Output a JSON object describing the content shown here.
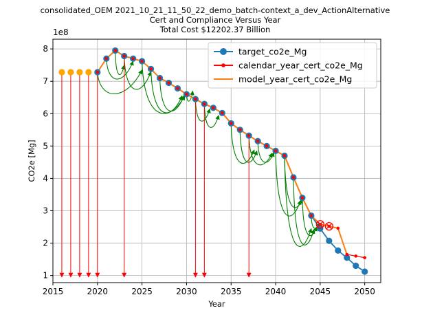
{
  "chart_data": {
    "type": "line",
    "title_lines": [
      "consolidated_OEM 2021_10_21_11_50_22_demo_batch-context_a_dev_ActionAlternative",
      "Cert and Compliance Versus Year",
      "Total Cost $12202.37 Billion"
    ],
    "xlabel": "Year",
    "ylabel": "CO2e [Mg]",
    "y_multiplier_label": "1e8",
    "xlim": [
      2015,
      2051.8
    ],
    "ylim": [
      0.78,
      8.3
    ],
    "x_ticks": [
      2015,
      2020,
      2025,
      2030,
      2035,
      2040,
      2045,
      2050
    ],
    "y_ticks": [
      1,
      2,
      3,
      4,
      5,
      6,
      7,
      8
    ],
    "grid": true,
    "legend_position": "upper right",
    "legend": [
      "target_co2e_Mg",
      "calendar_year_cert_co2e_Mg",
      "model_year_cert_co2e_Mg"
    ],
    "colors": {
      "target": "#1f77b4",
      "calendar": "#ff0000",
      "model": "#ff7f0e",
      "transfer": "#008000",
      "pre_credit": "#ffa500"
    },
    "series": [
      {
        "name": "target_co2e_Mg",
        "x": [
          2020,
          2021,
          2022,
          2023,
          2024,
          2025,
          2026,
          2027,
          2028,
          2029,
          2030,
          2031,
          2032,
          2033,
          2034,
          2035,
          2036,
          2037,
          2038,
          2039,
          2040,
          2041,
          2042,
          2043,
          2044,
          2045,
          2046,
          2047,
          2048,
          2049,
          2050
        ],
        "y": [
          7.28,
          7.7,
          7.95,
          7.78,
          7.7,
          7.62,
          7.38,
          7.1,
          6.95,
          6.78,
          6.6,
          6.45,
          6.3,
          6.18,
          6.02,
          5.7,
          5.5,
          5.32,
          5.15,
          5.0,
          4.85,
          4.7,
          4.03,
          3.4,
          2.85,
          2.45,
          2.07,
          1.77,
          1.55,
          1.3,
          1.12
        ]
      },
      {
        "name": "calendar_year_cert_co2e_Mg",
        "x": [
          2020,
          2021,
          2022,
          2023,
          2024,
          2025,
          2026,
          2027,
          2028,
          2029,
          2030,
          2031,
          2032,
          2033,
          2034,
          2035,
          2036,
          2037,
          2038,
          2039,
          2040,
          2041,
          2042,
          2043,
          2044,
          2045,
          2046,
          2047,
          2048,
          2049,
          2050
        ],
        "y": [
          7.28,
          7.7,
          7.95,
          7.78,
          7.7,
          7.62,
          7.38,
          7.1,
          6.95,
          6.78,
          6.6,
          6.45,
          6.3,
          6.18,
          6.02,
          5.7,
          5.5,
          5.32,
          5.15,
          5.0,
          4.85,
          4.7,
          4.03,
          3.4,
          2.85,
          2.58,
          2.52,
          2.46,
          1.65,
          1.6,
          1.55
        ]
      },
      {
        "name": "model_year_cert_co2e_Mg",
        "x": [
          2020,
          2021,
          2022,
          2023,
          2024,
          2025,
          2026,
          2027,
          2028,
          2029,
          2030,
          2031,
          2032,
          2033,
          2034,
          2035,
          2036,
          2037,
          2038,
          2039,
          2040,
          2041,
          2042,
          2043,
          2044,
          2045,
          2046,
          2047,
          2048
        ],
        "y": [
          7.28,
          7.7,
          7.95,
          7.78,
          7.7,
          7.62,
          7.38,
          7.1,
          6.95,
          6.78,
          6.6,
          6.45,
          6.3,
          6.18,
          6.02,
          5.7,
          5.5,
          5.32,
          5.15,
          5.0,
          4.85,
          4.7,
          4.03,
          3.4,
          2.85,
          2.58,
          2.52,
          2.46,
          1.65
        ]
      }
    ],
    "pre_credit_points": {
      "x": [
        2016,
        2017,
        2018,
        2019
      ],
      "y": [
        7.28,
        7.28,
        7.28,
        7.28
      ]
    },
    "expired_credit_markers": [
      {
        "x": 2045,
        "y": 2.58
      },
      {
        "x": 2046,
        "y": 2.52
      }
    ],
    "credit_expiration_arrows": [
      {
        "x": 2016,
        "y_from": 7.22,
        "y_to": 0.95
      },
      {
        "x": 2017,
        "y_from": 7.22,
        "y_to": 0.95
      },
      {
        "x": 2018,
        "y_from": 7.22,
        "y_to": 0.95
      },
      {
        "x": 2019,
        "y_from": 7.22,
        "y_to": 0.95
      },
      {
        "x": 2020,
        "y_from": 7.22,
        "y_to": 0.95
      },
      {
        "x": 2023,
        "y_from": 7.72,
        "y_to": 0.95
      },
      {
        "x": 2031,
        "y_from": 6.4,
        "y_to": 0.95
      },
      {
        "x": 2032,
        "y_from": 6.25,
        "y_to": 0.95
      },
      {
        "x": 2037,
        "y_from": 5.28,
        "y_to": 0.95
      }
    ],
    "credit_transfers": [
      {
        "from": [
          2020,
          7.28
        ],
        "to": [
          2025.0,
          7.35
        ],
        "dip": 0.9
      },
      {
        "from": [
          2021,
          7.7
        ],
        "to": [
          2024.0,
          7.62
        ],
        "dip": 0.75
      },
      {
        "from": [
          2022,
          7.95
        ],
        "to": [
          2023.0,
          7.5
        ],
        "dip": 0.45
      },
      {
        "from": [
          2023,
          7.78
        ],
        "to": [
          2026.0,
          7.3
        ],
        "dip": 0.8
      },
      {
        "from": [
          2025,
          7.62
        ],
        "to": [
          2029.8,
          6.55
        ],
        "dip": 0.85
      },
      {
        "from": [
          2026,
          7.38
        ],
        "to": [
          2029.5,
          6.55
        ],
        "dip": 0.8
      },
      {
        "from": [
          2027,
          7.1
        ],
        "to": [
          2029.7,
          6.55
        ],
        "dip": 0.7
      },
      {
        "from": [
          2030,
          6.6
        ],
        "to": [
          2030.7,
          6.7
        ],
        "dip": 0.3
      },
      {
        "from": [
          2031,
          6.45
        ],
        "to": [
          2032.6,
          6.15
        ],
        "dip": 0.55
      },
      {
        "from": [
          2032,
          6.3
        ],
        "to": [
          2033.6,
          5.95
        ],
        "dip": 0.55
      },
      {
        "from": [
          2035,
          5.7
        ],
        "to": [
          2037.6,
          4.88
        ],
        "dip": 0.65
      },
      {
        "from": [
          2036,
          5.5
        ],
        "to": [
          2037.9,
          4.85
        ],
        "dip": 0.55
      },
      {
        "from": [
          2037,
          5.32
        ],
        "to": [
          2039.6,
          4.78
        ],
        "dip": 0.55
      },
      {
        "from": [
          2038,
          5.15
        ],
        "to": [
          2039.8,
          4.8
        ],
        "dip": 0.45
      },
      {
        "from": [
          2041,
          4.7
        ],
        "to": [
          2043.0,
          3.35
        ],
        "dip": 0.45
      },
      {
        "from": [
          2040,
          4.85
        ],
        "to": [
          2042.8,
          3.32
        ],
        "dip": 0.8
      },
      {
        "from": [
          2041,
          4.7
        ],
        "to": [
          2044.0,
          2.45
        ],
        "dip": 0.95
      },
      {
        "from": [
          2042,
          4.03
        ],
        "to": [
          2044.3,
          2.42
        ],
        "dip": 0.8
      },
      {
        "from": [
          2043,
          3.4
        ],
        "to": [
          2044.6,
          2.5
        ],
        "dip": 0.45
      },
      {
        "from": [
          2044,
          2.85
        ],
        "to": [
          2044.9,
          2.62
        ],
        "dip": 0.25
      }
    ]
  }
}
